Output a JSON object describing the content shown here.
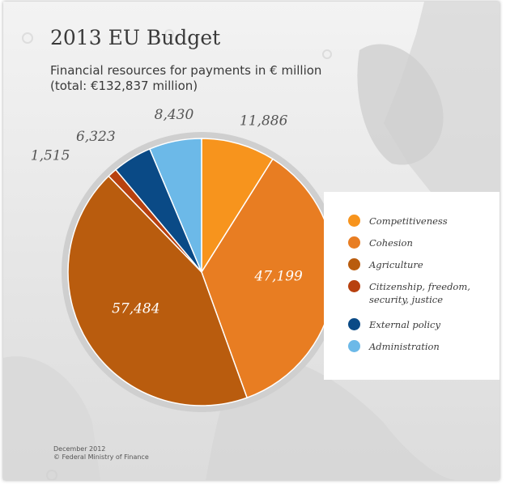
{
  "title": "2013 EU Budget",
  "subtitle_line1": "Financial resources for payments in € million",
  "subtitle_line2": "(total: €132,837 million)",
  "footer_line1": "December 2012",
  "footer_line2": "© Federal Ministry of Finance",
  "chart_data": {
    "type": "pie",
    "title": "2013 EU Budget",
    "subtitle": "Financial resources for payments in € million (total: €132,837 million)",
    "total": 132837,
    "start_angle_deg": 0,
    "direction": "clockwise",
    "legend_position": "right",
    "slices": [
      {
        "label": "Competitiveness",
        "value": 11886,
        "display": "11,886",
        "color": "#F7941D"
      },
      {
        "label": "Cohesion",
        "value": 47199,
        "display": "47,199",
        "color": "#E87D22"
      },
      {
        "label": "Agriculture",
        "value": 57484,
        "display": "57,484",
        "color": "#B95C0E"
      },
      {
        "label": "Citizenship, freedom, security, justice",
        "value": 1515,
        "display": "1,515",
        "color": "#B8410F"
      },
      {
        "label": "External policy",
        "value": 6323,
        "display": "6,323",
        "color": "#0A4A86"
      },
      {
        "label": "Administration",
        "value": 8430,
        "display": "8,430",
        "color": "#6CB9E8"
      }
    ]
  },
  "legend": {
    "items": [
      {
        "label": "Competitiveness",
        "color": "#F7941D"
      },
      {
        "label": "Cohesion",
        "color": "#E87D22"
      },
      {
        "label": "Agriculture",
        "color": "#B95C0E"
      },
      {
        "label": "Citizenship, freedom, security, justice",
        "color": "#B8410F"
      },
      {
        "label": "External policy",
        "color": "#0A4A86"
      },
      {
        "label": "Administration",
        "color": "#6CB9E8"
      }
    ]
  }
}
